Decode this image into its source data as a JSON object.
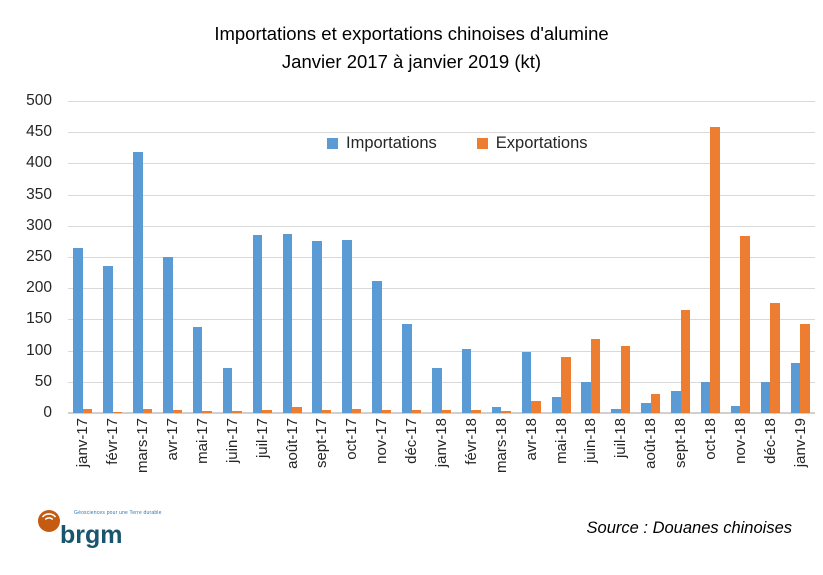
{
  "title": {
    "line1": "Importations et exportations chinoises d'alumine",
    "line2": "Janvier 2017 à janvier 2019 (kt)"
  },
  "legend": {
    "importations": "Importations",
    "exportations": "Exportations"
  },
  "source": "Source : Douanes chinoises",
  "logo": {
    "text": "brgm",
    "tagline": "Géosciences pour une Terre durable"
  },
  "colors": {
    "importations": "#5B9BD5",
    "exportations": "#ED7D31",
    "gridline": "#D9D9D9",
    "axis_text": "#262626",
    "logo_orange": "#C55A11",
    "logo_blue": "#19566E"
  },
  "chart_data": {
    "type": "bar",
    "title": "Importations et exportations chinoises d'alumine — Janvier 2017 à janvier 2019 (kt)",
    "categories": [
      "janv-17",
      "févr-17",
      "mars-17",
      "avr-17",
      "mai-17",
      "juin-17",
      "juil-17",
      "août-17",
      "sept-17",
      "oct-17",
      "nov-17",
      "déc-17",
      "janv-18",
      "févr-18",
      "mars-18",
      "avr-18",
      "mai-18",
      "juin-18",
      "juil-18",
      "août-18",
      "sept-18",
      "oct-18",
      "nov-18",
      "déc-18",
      "janv-19"
    ],
    "series": [
      {
        "name": "Importations",
        "color": "#5B9BD5",
        "values": [
          264,
          235,
          418,
          250,
          138,
          72,
          285,
          287,
          276,
          278,
          212,
          142,
          72,
          102,
          10,
          98,
          25,
          50,
          6,
          16,
          35,
          50,
          11,
          50,
          80
        ]
      },
      {
        "name": "Exportations",
        "color": "#ED7D31",
        "values": [
          7,
          2,
          6,
          5,
          3,
          3,
          5,
          9,
          5,
          6,
          5,
          5,
          5,
          5,
          4,
          20,
          90,
          118,
          107,
          30,
          165,
          458,
          283,
          177,
          142
        ]
      }
    ],
    "xlabel": "",
    "ylabel": "",
    "ylim": [
      0,
      500
    ],
    "ytick_step": 50,
    "grid": true,
    "legend_position": "top-center"
  }
}
